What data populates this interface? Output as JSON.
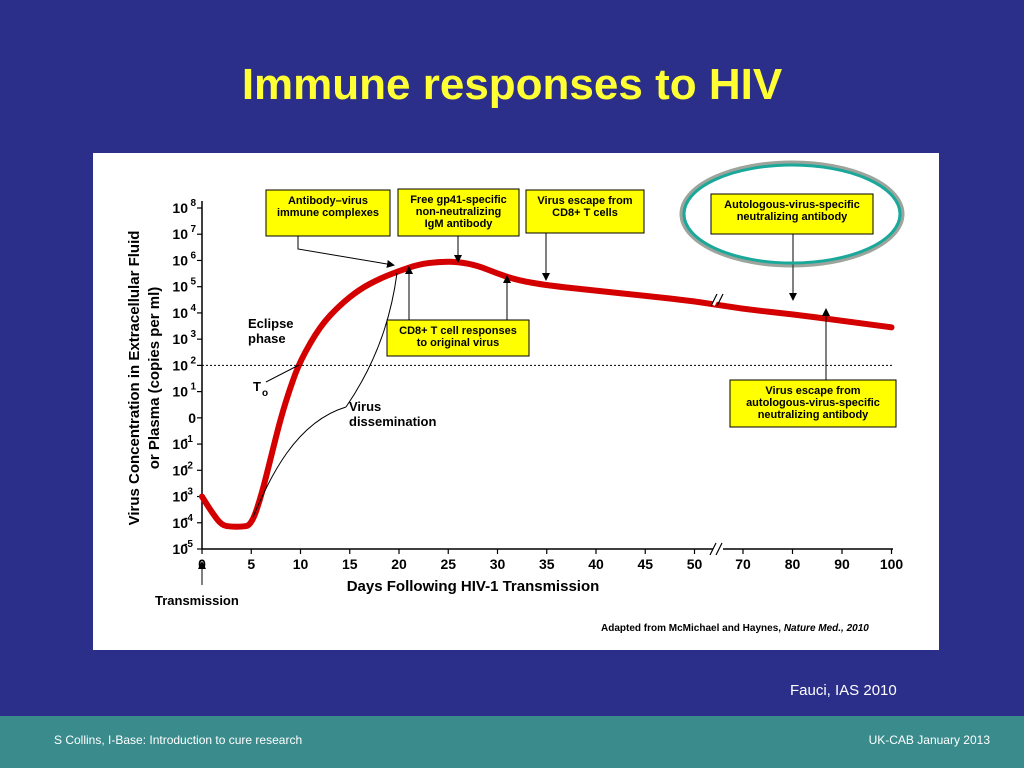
{
  "slide": {
    "title": "Immune responses to HIV",
    "credit": "Fauci, IAS 2010",
    "footer_left": "S Collins, I-Base: Introduction to cure research",
    "footer_right": "UK-CAB January 2013"
  },
  "colors": {
    "background": "#2b2f8a",
    "title": "#ffff33",
    "footer": "#3a8c8c",
    "curve": "#d40000",
    "callout_fill": "#ffff00",
    "highlight_ring": "#1aa89a"
  },
  "chart_data": {
    "type": "line",
    "xlabel": "Days Following HIV-1 Transmission",
    "ylabel_line1": "Virus Concentration in Extracellular Fluid",
    "ylabel_line2": "or Plasma (copies per ml)",
    "x_ticks": [
      "0",
      "5",
      "10",
      "15",
      "20",
      "25",
      "30",
      "35",
      "40",
      "45",
      "50",
      "70",
      "80",
      "90",
      "100"
    ],
    "y_ticks": [
      {
        "value": 8,
        "base": "10",
        "exp": "8"
      },
      {
        "value": 7,
        "base": "10",
        "exp": "7"
      },
      {
        "value": 6,
        "base": "10",
        "exp": "6"
      },
      {
        "value": 5,
        "base": "10",
        "exp": "5"
      },
      {
        "value": 4,
        "base": "10",
        "exp": "4"
      },
      {
        "value": 3,
        "base": "10",
        "exp": "3"
      },
      {
        "value": 2,
        "base": "10",
        "exp": "2"
      },
      {
        "value": 1,
        "base": "10",
        "exp": "1"
      },
      {
        "value": 0,
        "base": "0",
        "exp": ""
      },
      {
        "value": -1,
        "base": "10",
        "exp": "-1"
      },
      {
        "value": -2,
        "base": "10",
        "exp": "-2"
      },
      {
        "value": -3,
        "base": "10",
        "exp": "-3"
      },
      {
        "value": -4,
        "base": "10",
        "exp": "-4"
      },
      {
        "value": -5,
        "base": "10",
        "exp": "-5"
      }
    ],
    "y_scale": "log10",
    "ylim": [
      -5,
      8
    ],
    "x_axis_break": "between 50 and 70",
    "detection_threshold_log10": 2,
    "series": [
      {
        "points": [
          [
            0,
            -3.0
          ],
          [
            1,
            -3.6
          ],
          [
            2,
            -4.1
          ],
          [
            3,
            -4.15
          ],
          [
            4,
            -4.15
          ],
          [
            5,
            -4.1
          ],
          [
            6,
            -3.0
          ],
          [
            7,
            -1.5
          ],
          [
            8,
            0.0
          ],
          [
            9,
            1.2
          ],
          [
            10,
            2.2
          ],
          [
            12,
            3.5
          ],
          [
            14,
            4.3
          ],
          [
            16,
            4.9
          ],
          [
            18,
            5.3
          ],
          [
            20,
            5.6
          ],
          [
            22,
            5.85
          ],
          [
            24,
            5.95
          ],
          [
            26,
            5.95
          ],
          [
            28,
            5.8
          ],
          [
            30,
            5.5
          ],
          [
            32,
            5.25
          ],
          [
            35,
            5.05
          ],
          [
            40,
            4.85
          ],
          [
            45,
            4.65
          ],
          [
            50,
            4.45
          ],
          [
            70,
            4.15
          ],
          [
            80,
            3.95
          ],
          [
            90,
            3.7
          ],
          [
            100,
            3.45
          ]
        ]
      }
    ],
    "annotations": {
      "eclipse": [
        "Eclipse",
        "phase"
      ],
      "t0": "T",
      "t0_sub": "o",
      "dissemination": [
        "Virus",
        "dissemination"
      ],
      "transmission": "Transmission",
      "callouts": [
        {
          "lines": [
            "Antibody–virus",
            "immune complexes"
          ]
        },
        {
          "lines": [
            "Free gp41-specific",
            "non-neutralizing",
            "IgM antibody"
          ]
        },
        {
          "lines": [
            "Virus escape from",
            "CD8+ T cells"
          ]
        },
        {
          "lines": [
            "Autologous-virus-specific",
            "neutralizing antibody"
          ]
        },
        {
          "lines": [
            "CD8+ T cell responses",
            "to original virus"
          ]
        },
        {
          "lines": [
            "Virus escape from",
            "autologous-virus-specific",
            "neutralizing antibody"
          ]
        }
      ]
    },
    "source_note": "Adapted from McMichael and Haynes,",
    "source_journal": "Nature Med., 2010"
  }
}
